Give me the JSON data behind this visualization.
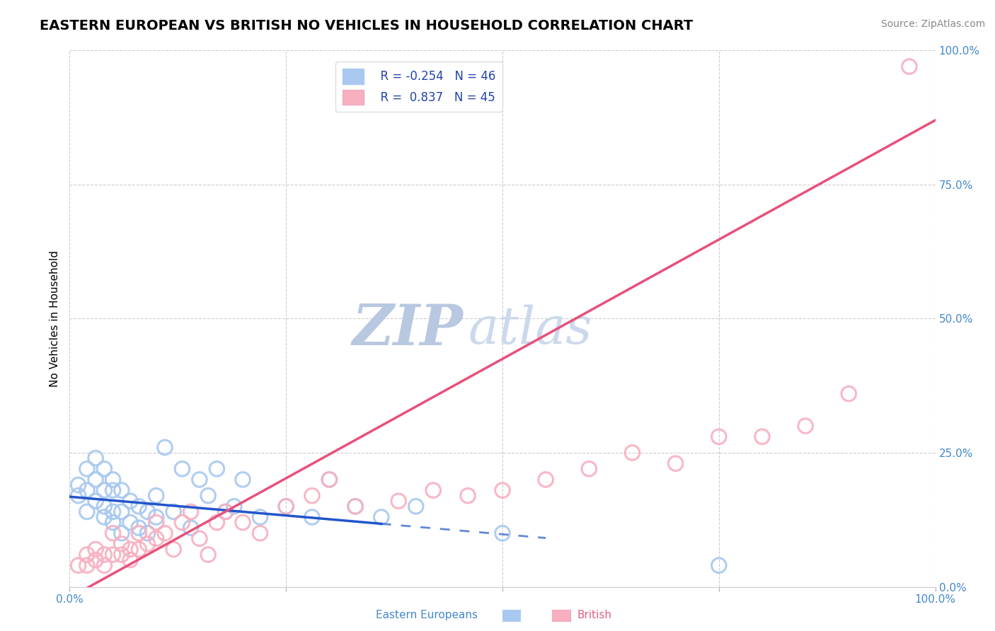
{
  "title": "EASTERN EUROPEAN VS BRITISH NO VEHICLES IN HOUSEHOLD CORRELATION CHART",
  "source": "Source: ZipAtlas.com",
  "ylabel": "No Vehicles in Household",
  "xlim": [
    0.0,
    1.0
  ],
  "ylim": [
    0.0,
    1.0
  ],
  "ytick_labels": [
    "0.0%",
    "25.0%",
    "50.0%",
    "75.0%",
    "100.0%"
  ],
  "ytick_positions": [
    0.0,
    0.25,
    0.5,
    0.75,
    1.0
  ],
  "grid_color": "#cccccc",
  "background_color": "#ffffff",
  "title_fontsize": 14,
  "watermark_zip": "ZIP",
  "watermark_atlas": "atlas",
  "watermark_color_zip": "#c8d4e8",
  "watermark_color_atlas": "#d0ddf0",
  "legend_R1": "R = -0.254",
  "legend_N1": "N = 46",
  "legend_R2": "R =  0.837",
  "legend_N2": "N = 45",
  "series1_color": "#a8c8f0",
  "series1_line_color": "#2255cc",
  "series2_color": "#f8b0c0",
  "series2_line_color": "#e8507a",
  "label1": "Eastern Europeans",
  "label2": "British",
  "tick_color": "#4488cc",
  "eastern_x": [
    0.01,
    0.01,
    0.02,
    0.02,
    0.02,
    0.03,
    0.03,
    0.03,
    0.04,
    0.04,
    0.04,
    0.04,
    0.05,
    0.05,
    0.05,
    0.05,
    0.06,
    0.06,
    0.06,
    0.07,
    0.07,
    0.08,
    0.08,
    0.09,
    0.09,
    0.1,
    0.1,
    0.11,
    0.12,
    0.13,
    0.14,
    0.15,
    0.16,
    0.17,
    0.18,
    0.19,
    0.2,
    0.22,
    0.25,
    0.28,
    0.3,
    0.33,
    0.36,
    0.4,
    0.5,
    0.75
  ],
  "eastern_y": [
    0.17,
    0.19,
    0.14,
    0.18,
    0.22,
    0.16,
    0.2,
    0.24,
    0.13,
    0.15,
    0.18,
    0.22,
    0.12,
    0.14,
    0.18,
    0.2,
    0.1,
    0.14,
    0.18,
    0.12,
    0.16,
    0.11,
    0.15,
    0.1,
    0.14,
    0.13,
    0.17,
    0.26,
    0.14,
    0.22,
    0.11,
    0.2,
    0.17,
    0.22,
    0.14,
    0.15,
    0.2,
    0.13,
    0.15,
    0.13,
    0.2,
    0.15,
    0.13,
    0.15,
    0.1,
    0.04
  ],
  "british_x": [
    0.01,
    0.02,
    0.02,
    0.03,
    0.03,
    0.04,
    0.04,
    0.05,
    0.05,
    0.06,
    0.06,
    0.07,
    0.07,
    0.08,
    0.08,
    0.09,
    0.1,
    0.1,
    0.11,
    0.12,
    0.13,
    0.14,
    0.15,
    0.16,
    0.17,
    0.18,
    0.2,
    0.22,
    0.25,
    0.28,
    0.3,
    0.33,
    0.38,
    0.42,
    0.46,
    0.5,
    0.55,
    0.6,
    0.65,
    0.7,
    0.75,
    0.8,
    0.85,
    0.9,
    0.97
  ],
  "british_y": [
    0.04,
    0.04,
    0.06,
    0.05,
    0.07,
    0.04,
    0.06,
    0.06,
    0.1,
    0.06,
    0.08,
    0.05,
    0.07,
    0.07,
    0.1,
    0.08,
    0.09,
    0.12,
    0.1,
    0.07,
    0.12,
    0.14,
    0.09,
    0.06,
    0.12,
    0.14,
    0.12,
    0.1,
    0.15,
    0.17,
    0.2,
    0.15,
    0.16,
    0.18,
    0.17,
    0.18,
    0.2,
    0.22,
    0.25,
    0.23,
    0.28,
    0.28,
    0.3,
    0.36,
    0.97
  ],
  "eastern_trend_y0": 0.168,
  "eastern_trend_y1": 0.028,
  "eastern_trend_solid_end": 0.36,
  "british_trend_y0": -0.02,
  "british_trend_y1": 0.87
}
